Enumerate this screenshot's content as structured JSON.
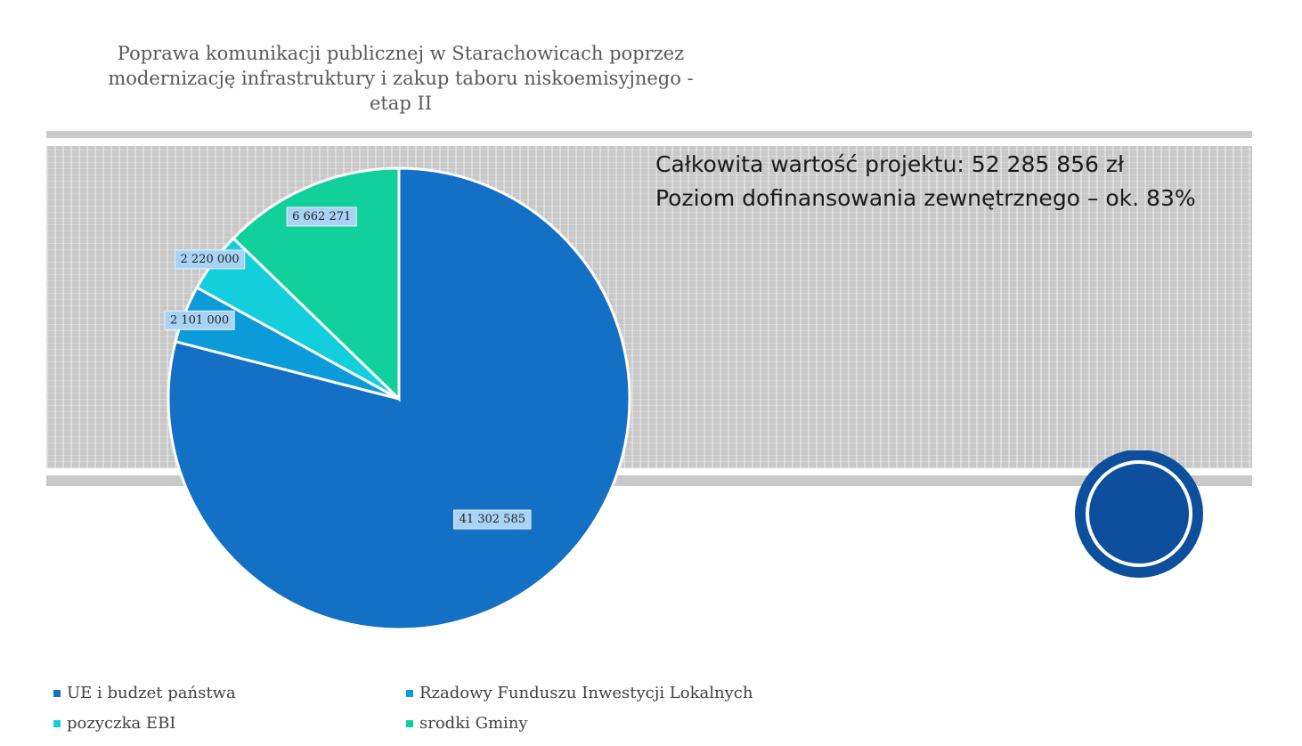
{
  "title": {
    "line1": "Poprawa komunikacji publicznej w Starachowicach poprzez",
    "line2": "modernizację infrastruktury i zakup taboru niskoemisyjnego -",
    "line3": "etap II"
  },
  "info": {
    "total_value": "Całkowita wartość projektu: 52 285 856 zł",
    "cofinancing": "Poziom dofinansowania zewnętrznego – ok. 83%"
  },
  "chart_data": {
    "type": "pie",
    "title": "Poprawa komunikacji publicznej w Starachowicach poprzez modernizację infrastruktury i zakup taboru niskoemisyjnego - etap II",
    "categories": [
      "UE i budzet państwa",
      "Rzadowy Funduszu Inwestycji Lokalnych",
      "pozyczka EBI",
      "srodki Gminy"
    ],
    "values": [
      41302585,
      2101000,
      2220000,
      6662271
    ],
    "data_labels": [
      "41 302 585",
      "2 101 000",
      "2 220 000",
      "6 662 271"
    ],
    "colors": [
      "#1470c4",
      "#0a9bd8",
      "#13cfdc",
      "#12d09c"
    ],
    "legend_position": "bottom"
  },
  "colors": {
    "banner": "#c8c8c8",
    "deco_circle": "#0d4f9c",
    "label_bg": "#a9d3f5"
  }
}
